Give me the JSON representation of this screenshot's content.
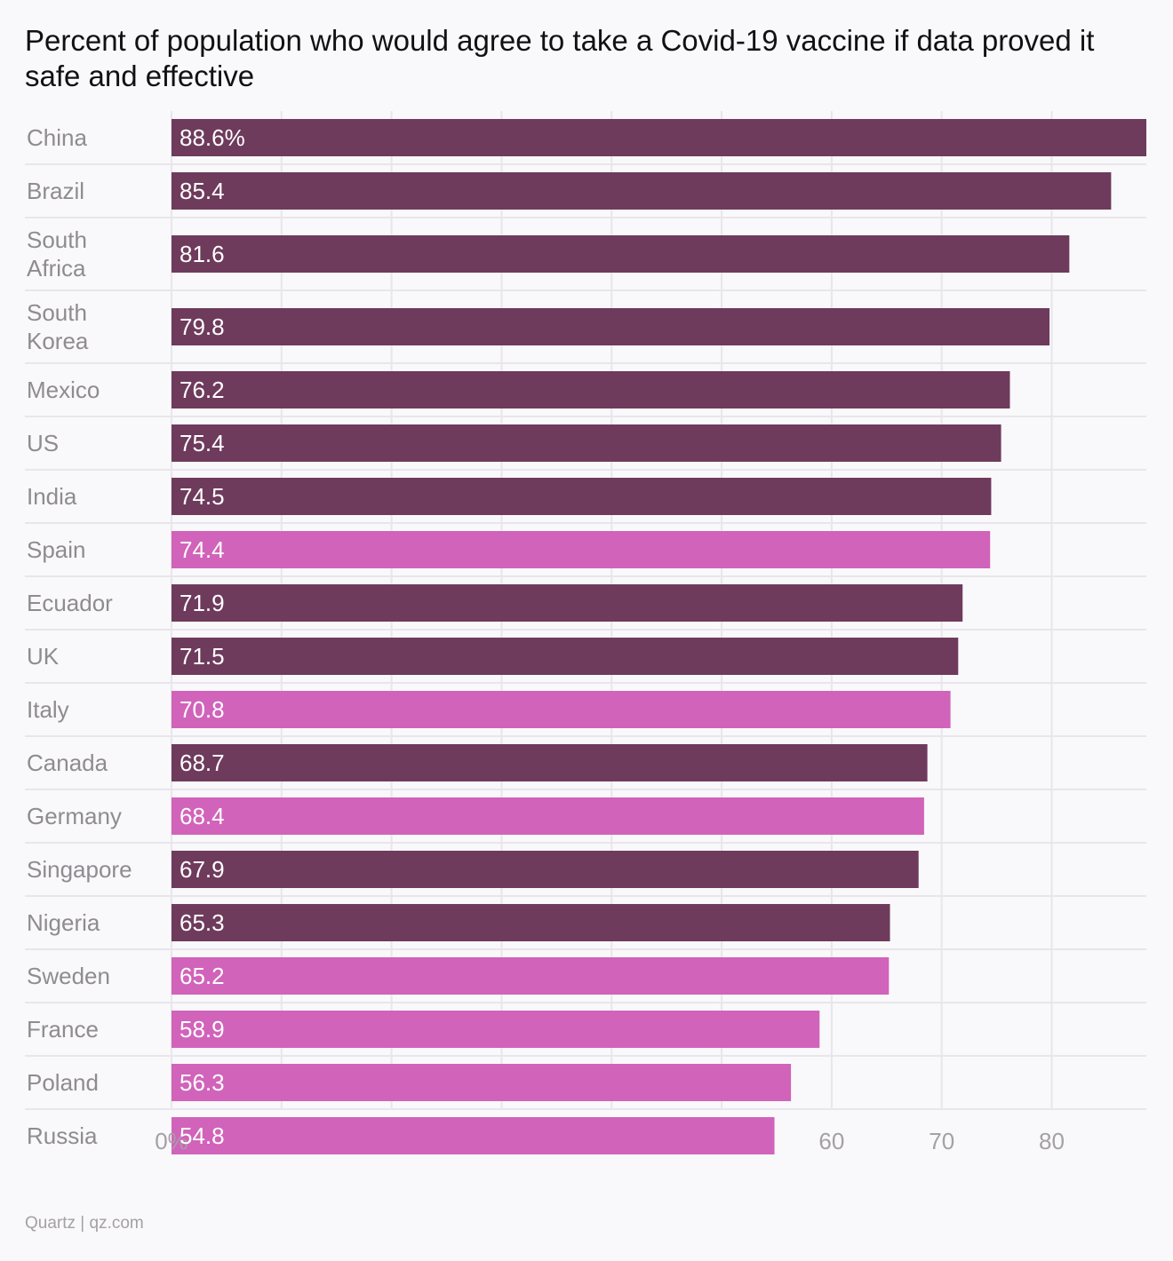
{
  "chart_data": {
    "type": "bar",
    "orientation": "horizontal",
    "title": "Percent of population who would agree to take a Covid-19 vaccine if data proved it safe and effective",
    "categories": [
      "China",
      "Brazil",
      "South Africa",
      "South Korea",
      "Mexico",
      "US",
      "India",
      "Spain",
      "Ecuador",
      "UK",
      "Italy",
      "Canada",
      "Germany",
      "Singapore",
      "Nigeria",
      "Sweden",
      "France",
      "Poland",
      "Russia"
    ],
    "category_lines": [
      [
        "China"
      ],
      [
        "Brazil"
      ],
      [
        "South",
        "Africa"
      ],
      [
        "South",
        "Korea"
      ],
      [
        "Mexico"
      ],
      [
        "US"
      ],
      [
        "India"
      ],
      [
        "Spain"
      ],
      [
        "Ecuador"
      ],
      [
        "UK"
      ],
      [
        "Italy"
      ],
      [
        "Canada"
      ],
      [
        "Germany"
      ],
      [
        "Singapore"
      ],
      [
        "Nigeria"
      ],
      [
        "Sweden"
      ],
      [
        "France"
      ],
      [
        "Poland"
      ],
      [
        "Russia"
      ]
    ],
    "values": [
      88.6,
      85.4,
      81.6,
      79.8,
      76.2,
      75.4,
      74.5,
      74.4,
      71.9,
      71.5,
      70.8,
      68.7,
      68.4,
      67.9,
      65.3,
      65.2,
      58.9,
      56.3,
      54.8
    ],
    "value_labels": [
      "88.6%",
      "85.4",
      "81.6",
      "79.8",
      "76.2",
      "75.4",
      "74.5",
      "74.4",
      "71.9",
      "71.5",
      "70.8",
      "68.7",
      "68.4",
      "67.9",
      "65.3",
      "65.2",
      "58.9",
      "56.3",
      "54.8"
    ],
    "highlight": [
      false,
      false,
      false,
      false,
      false,
      false,
      false,
      true,
      false,
      false,
      true,
      false,
      true,
      false,
      false,
      true,
      true,
      true,
      true
    ],
    "xlim": [
      0,
      88.6
    ],
    "x_ticks": [
      0,
      10,
      20,
      30,
      40,
      50,
      60,
      70,
      80
    ],
    "x_tick_labels": [
      "0%",
      "",
      "",
      "",
      "",
      "",
      "60",
      "70",
      "80"
    ],
    "grid": true,
    "legend": "none"
  },
  "colors": {
    "bar_default": "#6e3b5c",
    "bar_highlight": "#d163ba",
    "gridline": "#e8e6ea",
    "background": "#f9f8fa"
  },
  "source": "Quartz | qz.com"
}
